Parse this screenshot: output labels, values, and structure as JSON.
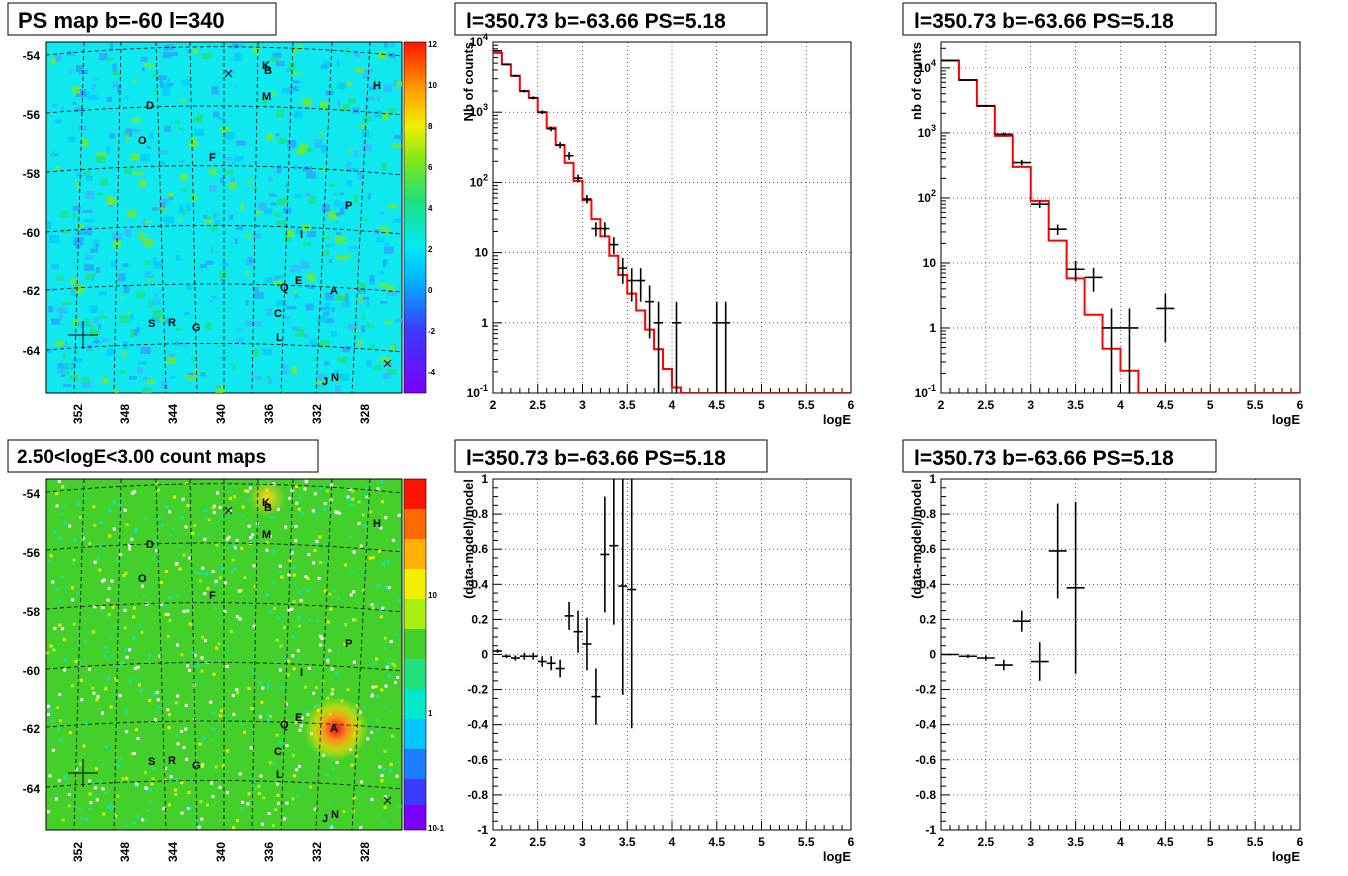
{
  "titles": {
    "map_top": "PS map b=-60 l=340",
    "map_bottom": "2.50<logE<3.00 count maps",
    "spec_left": "l=350.73 b=-63.66 PS=5.18",
    "spec_right": "l=350.73 b=-63.66 PS=5.18",
    "resid_left": "l=350.73 b=-63.66 PS=5.18",
    "resid_right": "l=350.73 b=-63.66 PS=5.18"
  },
  "maps": {
    "x_ticks": [
      "352",
      "348",
      "344",
      "340",
      "336",
      "332",
      "328"
    ],
    "y_ticks": [
      "-54",
      "-56",
      "-58",
      "-60",
      "-62",
      "-64"
    ],
    "source_labels": [
      "K",
      "B",
      "H",
      "M",
      "D",
      "O",
      "F",
      "P",
      "I",
      "E",
      "Q",
      "A",
      "C",
      "S",
      "R",
      "G",
      "L",
      "J",
      "N"
    ],
    "top_colorbar_ticks": [
      "12",
      "10",
      "8",
      "6",
      "4",
      "2",
      "0",
      "-2",
      "-4"
    ],
    "bottom_colorbar_ticks": [
      "10",
      "1",
      "10-1"
    ],
    "top_background": "#0fe8ee",
    "bottom_background": "#44d02a",
    "hotspot_label": "A"
  },
  "chart_data": [
    {
      "type": "line",
      "id": "spec_left",
      "title": "l=350.73 b=-63.66 PS=5.18",
      "xlabel": "logE",
      "ylabel": "Nb of counts",
      "xlim": [
        2,
        6
      ],
      "ylim": [
        0.1,
        10000
      ],
      "log_y": true,
      "grid": true,
      "x_ticks": [
        "2",
        "2.5",
        "3",
        "3.5",
        "4",
        "4.5",
        "5",
        "5.5",
        "6"
      ],
      "y_ticks": [
        "10-1",
        "1",
        "10",
        "102",
        "103",
        "104"
      ],
      "model_color": "#ff0000",
      "model": [
        {
          "x0": 2.0,
          "x1": 2.1,
          "y": 7000
        },
        {
          "x0": 2.1,
          "x1": 2.2,
          "y": 4800
        },
        {
          "x0": 2.2,
          "x1": 2.3,
          "y": 3300
        },
        {
          "x0": 2.3,
          "x1": 2.4,
          "y": 2000
        },
        {
          "x0": 2.4,
          "x1": 2.5,
          "y": 1600
        },
        {
          "x0": 2.5,
          "x1": 2.6,
          "y": 1000
        },
        {
          "x0": 2.6,
          "x1": 2.7,
          "y": 600
        },
        {
          "x0": 2.7,
          "x1": 2.8,
          "y": 340
        },
        {
          "x0": 2.8,
          "x1": 2.9,
          "y": 190
        },
        {
          "x0": 2.9,
          "x1": 3.0,
          "y": 105
        },
        {
          "x0": 3.0,
          "x1": 3.1,
          "y": 56
        },
        {
          "x0": 3.1,
          "x1": 3.2,
          "y": 30
        },
        {
          "x0": 3.2,
          "x1": 3.3,
          "y": 17
        },
        {
          "x0": 3.3,
          "x1": 3.4,
          "y": 9
        },
        {
          "x0": 3.4,
          "x1": 3.5,
          "y": 4.8
        },
        {
          "x0": 3.5,
          "x1": 3.6,
          "y": 2.6
        },
        {
          "x0": 3.6,
          "x1": 3.7,
          "y": 1.5
        },
        {
          "x0": 3.7,
          "x1": 3.8,
          "y": 0.8
        },
        {
          "x0": 3.8,
          "x1": 3.9,
          "y": 0.42
        },
        {
          "x0": 3.9,
          "x1": 4.0,
          "y": 0.22
        },
        {
          "x0": 4.0,
          "x1": 4.1,
          "y": 0.12
        },
        {
          "x0": 4.1,
          "x1": 6.0,
          "y": 0.1
        }
      ],
      "data": [
        {
          "x": 2.05,
          "y": 7500,
          "ylo": 7300,
          "yhi": 7700,
          "xerr": 0.05
        },
        {
          "x": 2.15,
          "y": 4800,
          "ylo": 4650,
          "yhi": 4950,
          "xerr": 0.05
        },
        {
          "x": 2.25,
          "y": 3300,
          "ylo": 3180,
          "yhi": 3420,
          "xerr": 0.05
        },
        {
          "x": 2.35,
          "y": 2000,
          "ylo": 1910,
          "yhi": 2090,
          "xerr": 0.05
        },
        {
          "x": 2.45,
          "y": 1600,
          "ylo": 1520,
          "yhi": 1680,
          "xerr": 0.05
        },
        {
          "x": 2.55,
          "y": 1000,
          "ylo": 940,
          "yhi": 1060,
          "xerr": 0.05
        },
        {
          "x": 2.65,
          "y": 580,
          "ylo": 535,
          "yhi": 625,
          "xerr": 0.05
        },
        {
          "x": 2.75,
          "y": 340,
          "ylo": 305,
          "yhi": 375,
          "xerr": 0.05
        },
        {
          "x": 2.85,
          "y": 240,
          "ylo": 210,
          "yhi": 270,
          "xerr": 0.05
        },
        {
          "x": 2.95,
          "y": 115,
          "ylo": 100,
          "yhi": 130,
          "xerr": 0.05
        },
        {
          "x": 3.05,
          "y": 58,
          "ylo": 50,
          "yhi": 66,
          "xerr": 0.05
        },
        {
          "x": 3.15,
          "y": 22,
          "ylo": 17,
          "yhi": 27,
          "xerr": 0.05
        },
        {
          "x": 3.25,
          "y": 22,
          "ylo": 17,
          "yhi": 27,
          "xerr": 0.05
        },
        {
          "x": 3.35,
          "y": 13,
          "ylo": 9.5,
          "yhi": 16.6,
          "xerr": 0.05
        },
        {
          "x": 3.45,
          "y": 6,
          "ylo": 3.6,
          "yhi": 8.4,
          "xerr": 0.05
        },
        {
          "x": 3.55,
          "y": 4,
          "ylo": 2.0,
          "yhi": 6.0,
          "xerr": 0.05
        },
        {
          "x": 3.65,
          "y": 4,
          "ylo": 2.0,
          "yhi": 6.0,
          "xerr": 0.05
        },
        {
          "x": 3.75,
          "y": 2,
          "ylo": 0.6,
          "yhi": 3.4,
          "xerr": 0.05
        },
        {
          "x": 3.85,
          "y": 1,
          "ylo": 0.1,
          "yhi": 2.0,
          "xerr": 0.05
        },
        {
          "x": 4.05,
          "y": 1,
          "ylo": 0.1,
          "yhi": 2.0,
          "xerr": 0.05
        },
        {
          "x": 4.5,
          "y": 1,
          "ylo": 0.1,
          "yhi": 2.0,
          "xerr": 0.05
        },
        {
          "x": 4.6,
          "y": 1,
          "ylo": 0.1,
          "yhi": 2.0,
          "xerr": 0.05
        }
      ]
    },
    {
      "type": "line",
      "id": "spec_right",
      "title": "l=350.73 b=-63.66 PS=5.18",
      "xlabel": "logE",
      "ylabel": "nb of counts",
      "xlim": [
        2,
        6
      ],
      "ylim": [
        0.1,
        25000
      ],
      "log_y": true,
      "grid": true,
      "x_ticks": [
        "2",
        "2.5",
        "3",
        "3.5",
        "4",
        "4.5",
        "5",
        "5.5",
        "6"
      ],
      "y_ticks": [
        "10-1",
        "1",
        "10",
        "102",
        "103",
        "104"
      ],
      "model_color": "#ff0000",
      "model": [
        {
          "x0": 2.0,
          "x1": 2.2,
          "y": 13000
        },
        {
          "x0": 2.2,
          "x1": 2.4,
          "y": 6500
        },
        {
          "x0": 2.4,
          "x1": 2.6,
          "y": 2600
        },
        {
          "x0": 2.6,
          "x1": 2.8,
          "y": 900
        },
        {
          "x0": 2.8,
          "x1": 3.0,
          "y": 300
        },
        {
          "x0": 3.0,
          "x1": 3.2,
          "y": 90
        },
        {
          "x0": 3.2,
          "x1": 3.4,
          "y": 22
        },
        {
          "x0": 3.4,
          "x1": 3.6,
          "y": 5.8
        },
        {
          "x0": 3.6,
          "x1": 3.8,
          "y": 1.6
        },
        {
          "x0": 3.8,
          "x1": 4.0,
          "y": 0.48
        },
        {
          "x0": 4.0,
          "x1": 4.2,
          "y": 0.22
        },
        {
          "x0": 4.2,
          "x1": 6.0,
          "y": 0.1
        }
      ],
      "data": [
        {
          "x": 2.1,
          "y": 13000,
          "ylo": 12800,
          "yhi": 13200,
          "xerr": 0.1
        },
        {
          "x": 2.3,
          "y": 6500,
          "ylo": 6350,
          "yhi": 6650,
          "xerr": 0.1
        },
        {
          "x": 2.5,
          "y": 2600,
          "ylo": 2500,
          "yhi": 2700,
          "xerr": 0.1
        },
        {
          "x": 2.7,
          "y": 950,
          "ylo": 890,
          "yhi": 1010,
          "xerr": 0.1
        },
        {
          "x": 2.9,
          "y": 350,
          "ylo": 315,
          "yhi": 385,
          "xerr": 0.1
        },
        {
          "x": 3.1,
          "y": 80,
          "ylo": 70,
          "yhi": 90,
          "xerr": 0.1
        },
        {
          "x": 3.3,
          "y": 33,
          "ylo": 27,
          "yhi": 39,
          "xerr": 0.1
        },
        {
          "x": 3.5,
          "y": 8,
          "ylo": 5.2,
          "yhi": 10.8,
          "xerr": 0.1
        },
        {
          "x": 3.7,
          "y": 6,
          "ylo": 3.6,
          "yhi": 8.4,
          "xerr": 0.1
        },
        {
          "x": 3.9,
          "y": 1,
          "ylo": 0.1,
          "yhi": 2.0,
          "xerr": 0.1
        },
        {
          "x": 4.1,
          "y": 1,
          "ylo": 0.1,
          "yhi": 2.0,
          "xerr": 0.1
        },
        {
          "x": 4.5,
          "y": 2,
          "ylo": 0.6,
          "yhi": 3.4,
          "xerr": 0.1
        }
      ]
    },
    {
      "type": "scatter",
      "id": "resid_left",
      "title": "l=350.73 b=-63.66 PS=5.18",
      "xlabel": "logE",
      "ylabel": "(data-model)/model",
      "xlim": [
        2,
        6
      ],
      "ylim": [
        -1,
        1
      ],
      "grid": true,
      "x_ticks": [
        "2",
        "2.5",
        "3",
        "3.5",
        "4",
        "4.5",
        "5",
        "5.5",
        "6"
      ],
      "y_ticks": [
        "-1",
        "-0.8",
        "-0.6",
        "-0.4",
        "-0.2",
        "0",
        "0.2",
        "0.4",
        "0.6",
        "0.8",
        "1"
      ],
      "data": [
        {
          "x": 2.05,
          "y": 0.02,
          "ylo": 0.01,
          "yhi": 0.03,
          "xerr": 0.05
        },
        {
          "x": 2.15,
          "y": -0.01,
          "ylo": -0.02,
          "yhi": 0.0,
          "xerr": 0.05
        },
        {
          "x": 2.25,
          "y": -0.02,
          "ylo": -0.035,
          "yhi": -0.005,
          "xerr": 0.05
        },
        {
          "x": 2.35,
          "y": -0.01,
          "ylo": -0.03,
          "yhi": 0.01,
          "xerr": 0.05
        },
        {
          "x": 2.45,
          "y": -0.01,
          "ylo": -0.03,
          "yhi": 0.01,
          "xerr": 0.05
        },
        {
          "x": 2.55,
          "y": -0.04,
          "ylo": -0.07,
          "yhi": -0.01,
          "xerr": 0.05
        },
        {
          "x": 2.65,
          "y": -0.05,
          "ylo": -0.09,
          "yhi": -0.01,
          "xerr": 0.05
        },
        {
          "x": 2.75,
          "y": -0.08,
          "ylo": -0.13,
          "yhi": -0.03,
          "xerr": 0.05
        },
        {
          "x": 2.85,
          "y": 0.22,
          "ylo": 0.14,
          "yhi": 0.3,
          "xerr": 0.05
        },
        {
          "x": 2.95,
          "y": 0.13,
          "ylo": 0.01,
          "yhi": 0.25,
          "xerr": 0.05
        },
        {
          "x": 3.05,
          "y": 0.06,
          "ylo": -0.09,
          "yhi": 0.21,
          "xerr": 0.05
        },
        {
          "x": 3.15,
          "y": -0.24,
          "ylo": -0.4,
          "yhi": -0.08,
          "xerr": 0.05
        },
        {
          "x": 3.25,
          "y": 0.57,
          "ylo": 0.24,
          "yhi": 0.9,
          "xerr": 0.05
        },
        {
          "x": 3.35,
          "y": 0.62,
          "ylo": 0.17,
          "yhi": 1.0,
          "xerr": 0.05
        },
        {
          "x": 3.45,
          "y": 0.39,
          "ylo": -0.23,
          "yhi": 1.0,
          "xerr": 0.05
        },
        {
          "x": 3.55,
          "y": 0.37,
          "ylo": -0.42,
          "yhi": 1.0,
          "xerr": 0.05
        }
      ]
    },
    {
      "type": "scatter",
      "id": "resid_right",
      "title": "l=350.73 b=-63.66 PS=5.18",
      "xlabel": "logE",
      "ylabel": "(data-model)/model",
      "xlim": [
        2,
        6
      ],
      "ylim": [
        -1,
        1
      ],
      "grid": true,
      "x_ticks": [
        "2",
        "2.5",
        "3",
        "3.5",
        "4",
        "4.5",
        "5",
        "5.5",
        "6"
      ],
      "y_ticks": [
        "-1",
        "-0.8",
        "-0.6",
        "-0.4",
        "-0.2",
        "0",
        "0.2",
        "0.4",
        "0.6",
        "0.8",
        "1"
      ],
      "data": [
        {
          "x": 2.1,
          "y": 0.0,
          "ylo": -0.005,
          "yhi": 0.005,
          "xerr": 0.1
        },
        {
          "x": 2.3,
          "y": -0.01,
          "ylo": -0.02,
          "yhi": 0.0,
          "xerr": 0.1
        },
        {
          "x": 2.5,
          "y": -0.02,
          "ylo": -0.035,
          "yhi": -0.005,
          "xerr": 0.1
        },
        {
          "x": 2.7,
          "y": -0.06,
          "ylo": -0.09,
          "yhi": -0.03,
          "xerr": 0.1
        },
        {
          "x": 2.9,
          "y": 0.19,
          "ylo": 0.13,
          "yhi": 0.25,
          "xerr": 0.1
        },
        {
          "x": 3.1,
          "y": -0.04,
          "ylo": -0.15,
          "yhi": 0.07,
          "xerr": 0.1
        },
        {
          "x": 3.3,
          "y": 0.59,
          "ylo": 0.32,
          "yhi": 0.86,
          "xerr": 0.1
        },
        {
          "x": 3.5,
          "y": 0.38,
          "ylo": -0.11,
          "yhi": 0.87,
          "xerr": 0.1
        }
      ]
    }
  ]
}
